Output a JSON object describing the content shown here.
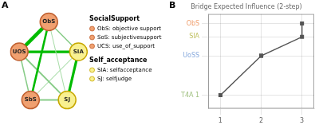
{
  "chart_data": [
    {
      "type": "network",
      "annotations": [
        "A"
      ],
      "nodes": [
        {
          "name": "ObS",
          "color": "#f0a070",
          "border": "#c06030"
        },
        {
          "name": "UOS",
          "color": "#f0a070",
          "border": "#c06030"
        },
        {
          "name": "SbS",
          "color": "#f0a070",
          "border": "#c06030"
        },
        {
          "name": "SJ",
          "color": "#f8f090",
          "border": "#c8a800"
        },
        {
          "name": "SIA",
          "color": "#f8f090",
          "border": "#c8a800"
        }
      ],
      "edges": [
        {
          "from": "ObS",
          "to": "UOS",
          "weight": 3.5,
          "color": "#00bb00"
        },
        {
          "from": "ObS",
          "to": "SbS",
          "weight": 2.0,
          "color": "#00bb00"
        },
        {
          "from": "ObS",
          "to": "SIA",
          "weight": 1.2,
          "color": "#88cc88"
        },
        {
          "from": "ObS",
          "to": "SJ",
          "weight": 0.8,
          "color": "#aaddaa"
        },
        {
          "from": "UOS",
          "to": "SbS",
          "weight": 1.2,
          "color": "#88cc88"
        },
        {
          "from": "UOS",
          "to": "SIA",
          "weight": 2.5,
          "color": "#00bb00"
        },
        {
          "from": "UOS",
          "to": "SJ",
          "weight": 1.5,
          "color": "#88cc88"
        },
        {
          "from": "SbS",
          "to": "SIA",
          "weight": 0.8,
          "color": "#aaddaa"
        },
        {
          "from": "SbS",
          "to": "SJ",
          "weight": 1.5,
          "color": "#88cc88"
        },
        {
          "from": "SIA",
          "to": "SJ",
          "weight": 2.5,
          "color": "#00bb00"
        }
      ],
      "legend_groups": [
        {
          "title": "SocialSupport",
          "items": [
            {
              "label": "ObS: objective support",
              "color": "#f0a070",
              "border": "#c06030"
            },
            {
              "label": "SoS: subjectivesupport",
              "color": "#f0a070",
              "border": "#c06030"
            },
            {
              "label": "UCS: use_of_support",
              "color": "#f0a070",
              "border": "#c06030"
            }
          ]
        },
        {
          "title": "Self_acceptance",
          "items": [
            {
              "label": "SIA: selfacceptance",
              "color": "#f8f090",
              "border": "#c8a800"
            },
            {
              "label": "SJ: selfjudge",
              "color": "#f8f090",
              "border": "#c8a800"
            }
          ]
        }
      ]
    },
    {
      "type": "line",
      "annotations": [
        "B"
      ],
      "title": "Bridge Expected Influence (2-step)",
      "x": [
        1,
        2,
        2,
        3,
        3
      ],
      "series": [
        {
          "color": "#555555",
          "marker": "square",
          "values": [
            -0.041,
            0.009,
            0.009,
            0.033,
            0.05
          ]
        }
      ],
      "xlim": [
        0.7,
        3.3
      ],
      "xticks": [
        1,
        2,
        3
      ],
      "ylim": [
        -0.058,
        0.062
      ],
      "yticks": [
        {
          "value": -0.041,
          "label": "T4A 1",
          "color": "#a0c080"
        },
        {
          "value": 0.009,
          "label": "UoSS",
          "color": "#88aadd"
        },
        {
          "value": 0.033,
          "label": "SIA",
          "color": "#c0c060"
        },
        {
          "value": 0.05,
          "label": "ObS",
          "color": "#f0a070"
        }
      ],
      "grid": true
    }
  ]
}
